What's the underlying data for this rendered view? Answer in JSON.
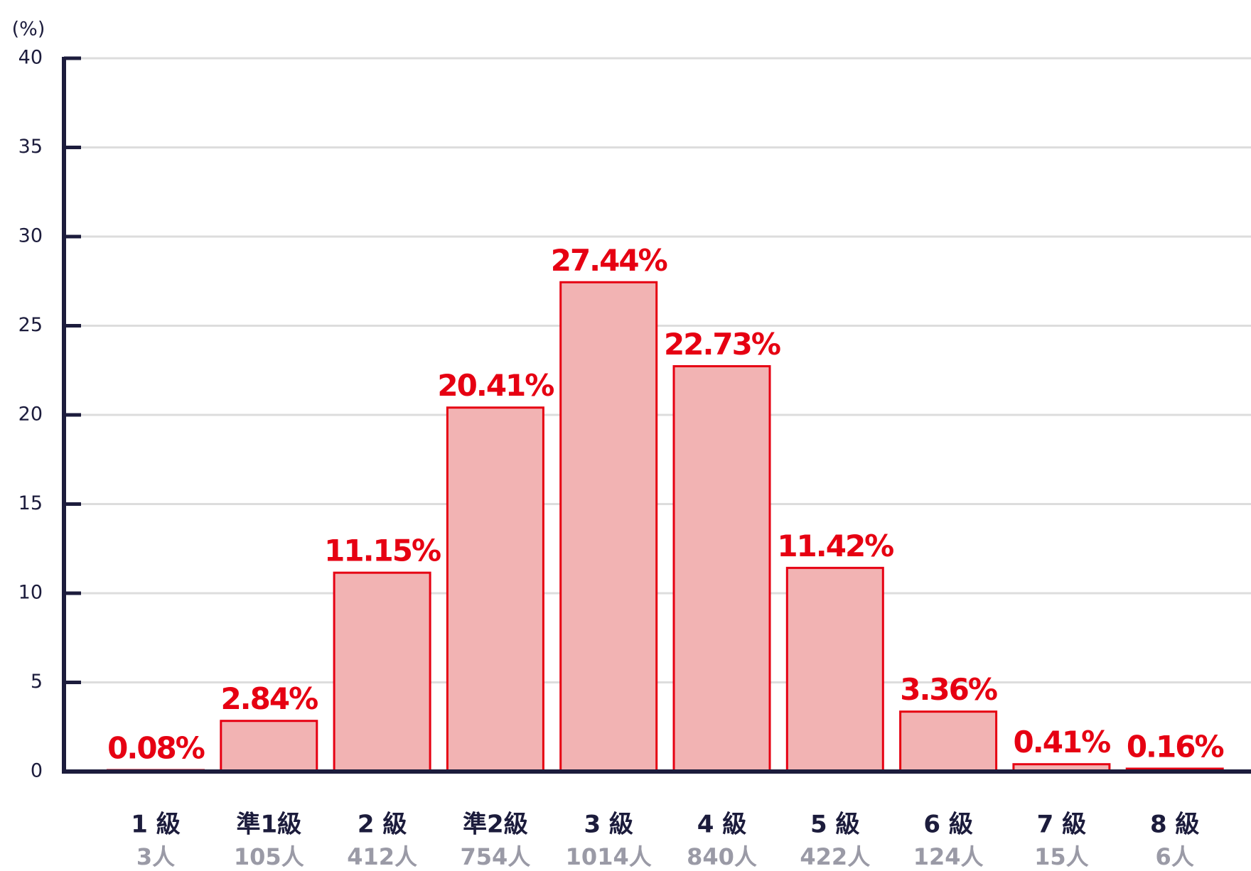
{
  "chart_data": {
    "type": "bar",
    "y_label": "(%)",
    "categories": [
      "1 級",
      "準1級",
      "2 級",
      "準2級",
      "3 級",
      "4 級",
      "5 級",
      "6 級",
      "7 級",
      "8 級"
    ],
    "counts": [
      "3人",
      "105人",
      "412人",
      "754人",
      "1014人",
      "840人",
      "422人",
      "124人",
      "15人",
      "6人"
    ],
    "values": [
      0.08,
      2.84,
      11.15,
      20.41,
      27.44,
      22.73,
      11.42,
      3.36,
      0.41,
      0.16
    ],
    "value_labels": [
      "0.08%",
      "2.84%",
      "11.15%",
      "20.41%",
      "27.44%",
      "22.73%",
      "11.42%",
      "3.36%",
      "0.41%",
      "0.16%"
    ],
    "color": "#f2b3b3",
    "edge_color": "#e60012",
    "ylim": [
      0,
      40
    ],
    "yticks": [
      0,
      5,
      10,
      15,
      20,
      25,
      30,
      35,
      40
    ],
    "grid": true
  }
}
